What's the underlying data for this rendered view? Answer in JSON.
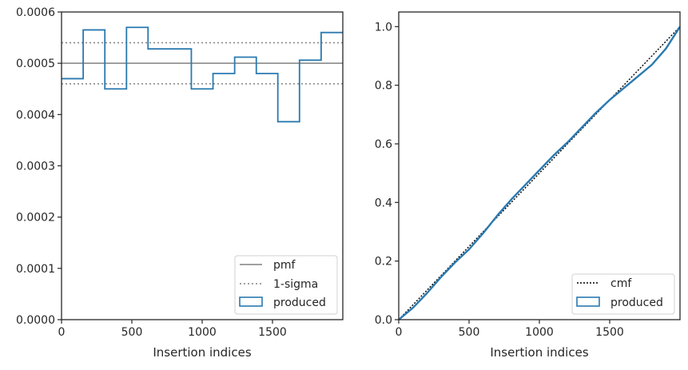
{
  "chart_data": [
    {
      "type": "histogram",
      "xlabel": "Insertion indices",
      "ylabel": "",
      "xlim": [
        0,
        2000
      ],
      "ylim": [
        0,
        0.0006
      ],
      "xticks": [
        "0",
        "500",
        "1000",
        "1500"
      ],
      "yticks": [
        "0.0000",
        "0.0001",
        "0.0002",
        "0.0003",
        "0.0004",
        "0.0005",
        "0.0006"
      ],
      "bin_edges": [
        0,
        154,
        308,
        462,
        615,
        769,
        923,
        1077,
        1231,
        1385,
        1538,
        1692,
        1846,
        2000
      ],
      "bin_values": [
        0.00047,
        0.000565,
        0.00045,
        0.00057,
        0.000528,
        0.000528,
        0.00045,
        0.00048,
        0.000512,
        0.00048,
        0.000386,
        0.000506,
        0.00056
      ],
      "reference_lines": {
        "pmf": 0.0005,
        "sigma_upper": 0.00054,
        "sigma_lower": 0.00046
      },
      "legend": {
        "position": "lower right",
        "entries": [
          "pmf",
          "1-sigma",
          "produced"
        ]
      },
      "colors": {
        "produced": "#2a7ab0",
        "pmf": "#808080",
        "sigma": "#808080"
      },
      "grid": false
    },
    {
      "type": "line",
      "xlabel": "Insertion indices",
      "ylabel": "",
      "xlim": [
        0,
        2000
      ],
      "ylim": [
        0,
        1.05
      ],
      "xticks": [
        "0",
        "500",
        "1000",
        "1500"
      ],
      "yticks": [
        "0.0",
        "0.2",
        "0.4",
        "0.6",
        "0.8",
        "1.0"
      ],
      "series": [
        {
          "name": "cmf",
          "x": [
            0,
            2000
          ],
          "y": [
            0,
            1.0
          ]
        },
        {
          "name": "produced",
          "x": [
            0,
            100,
            200,
            300,
            400,
            500,
            600,
            700,
            800,
            900,
            1000,
            1100,
            1200,
            1300,
            1400,
            1500,
            1600,
            1700,
            1800,
            1900,
            2000
          ],
          "y": [
            0,
            0.04,
            0.09,
            0.145,
            0.195,
            0.24,
            0.295,
            0.355,
            0.41,
            0.46,
            0.51,
            0.56,
            0.605,
            0.655,
            0.705,
            0.75,
            0.79,
            0.83,
            0.87,
            0.925,
            1.0
          ]
        }
      ],
      "legend": {
        "position": "lower right",
        "entries": [
          "cmf",
          "produced"
        ]
      },
      "colors": {
        "produced": "#2a7ab0",
        "cmf": "#000000"
      },
      "grid": false
    }
  ]
}
